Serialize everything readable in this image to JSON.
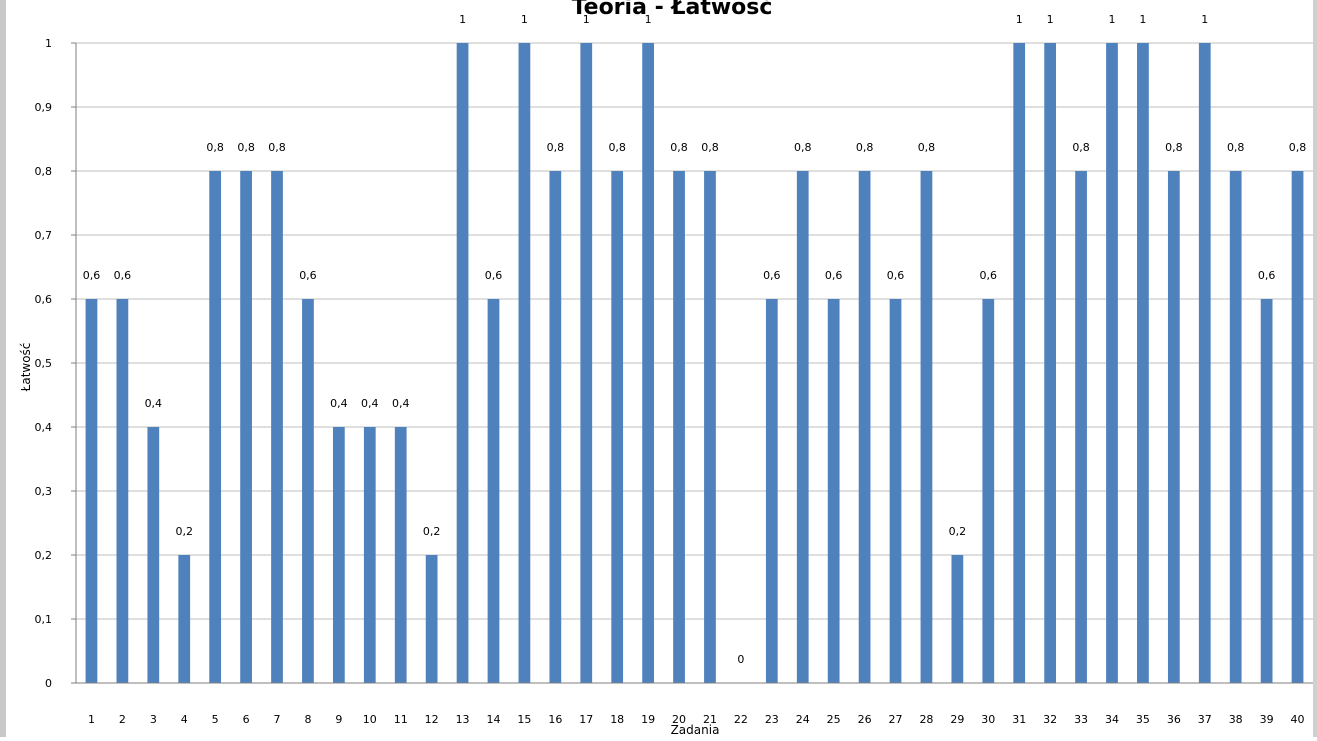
{
  "chart_data": {
    "type": "bar",
    "title": "Teoria - Łatwość",
    "xlabel": "Zadania",
    "ylabel": "Łatwość",
    "ylim": [
      0,
      1
    ],
    "yticks": [
      "0",
      "0,1",
      "0,2",
      "0,3",
      "0,4",
      "0,5",
      "0,6",
      "0,7",
      "0,8",
      "0,9",
      "1"
    ],
    "grid": true,
    "legend": "none",
    "colors": {
      "bar": "#4f81bd",
      "grid": "#bfbfbf",
      "axis": "#7f7f7f"
    },
    "categories": [
      "1",
      "2",
      "3",
      "4",
      "5",
      "6",
      "7",
      "8",
      "9",
      "10",
      "11",
      "12",
      "13",
      "14",
      "15",
      "16",
      "17",
      "18",
      "19",
      "20",
      "21",
      "22",
      "23",
      "24",
      "25",
      "26",
      "27",
      "28",
      "29",
      "30",
      "31",
      "32",
      "33",
      "34",
      "35",
      "36",
      "37",
      "38",
      "39",
      "40"
    ],
    "values": [
      0.6,
      0.6,
      0.4,
      0.2,
      0.8,
      0.8,
      0.8,
      0.6,
      0.4,
      0.4,
      0.4,
      0.2,
      1,
      0.6,
      1,
      0.8,
      1,
      0.8,
      1,
      0.8,
      0.8,
      0,
      0.6,
      0.8,
      0.6,
      0.8,
      0.6,
      0.8,
      0.2,
      0.6,
      1,
      1,
      0.8,
      1,
      1,
      0.8,
      1,
      0.8,
      0.6,
      0.8
    ],
    "data_labels": [
      "0,6",
      "0,6",
      "0,4",
      "0,2",
      "0,8",
      "0,8",
      "0,8",
      "0,6",
      "0,4",
      "0,4",
      "0,4",
      "0,2",
      "1",
      "0,6",
      "1",
      "0,8",
      "1",
      "0,8",
      "1",
      "0,8",
      "0,8",
      "0",
      "0,6",
      "0,8",
      "0,6",
      "0,8",
      "0,6",
      "0,8",
      "0,2",
      "0,6",
      "1",
      "1",
      "0,8",
      "1",
      "1",
      "0,8",
      "1",
      "0,8",
      "0,6",
      "0,8"
    ]
  }
}
